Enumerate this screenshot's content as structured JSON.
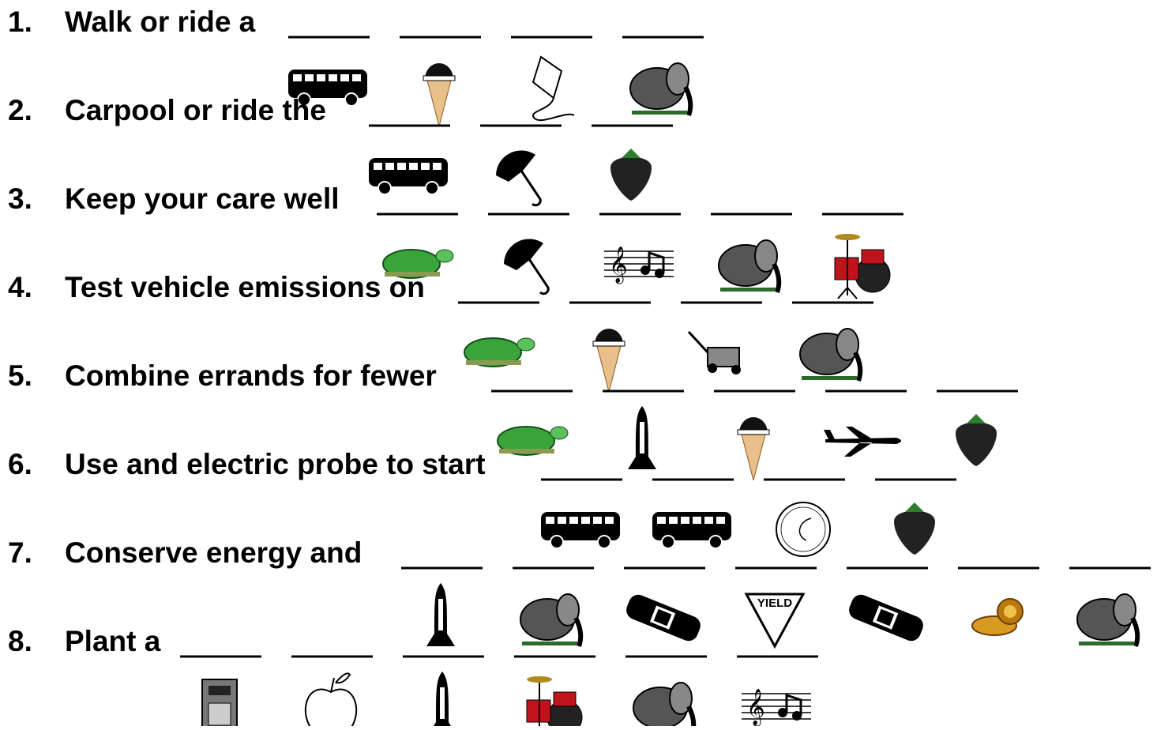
{
  "items": [
    {
      "number": "1.",
      "text": "Walk or ride a"
    },
    {
      "number": "2.",
      "text": "Carpool or ride the"
    },
    {
      "number": "3.",
      "text": "Keep your care well"
    },
    {
      "number": "4.",
      "text": "Test vehicle emissions on"
    },
    {
      "number": "5.",
      "text": "Combine errands for fewer"
    },
    {
      "number": "6.",
      "text": "Use and electric probe to start"
    },
    {
      "number": "7.",
      "text": "Conserve energy and"
    },
    {
      "number": "8.",
      "text": "Plant a"
    }
  ],
  "yield_sign": "YIELD"
}
